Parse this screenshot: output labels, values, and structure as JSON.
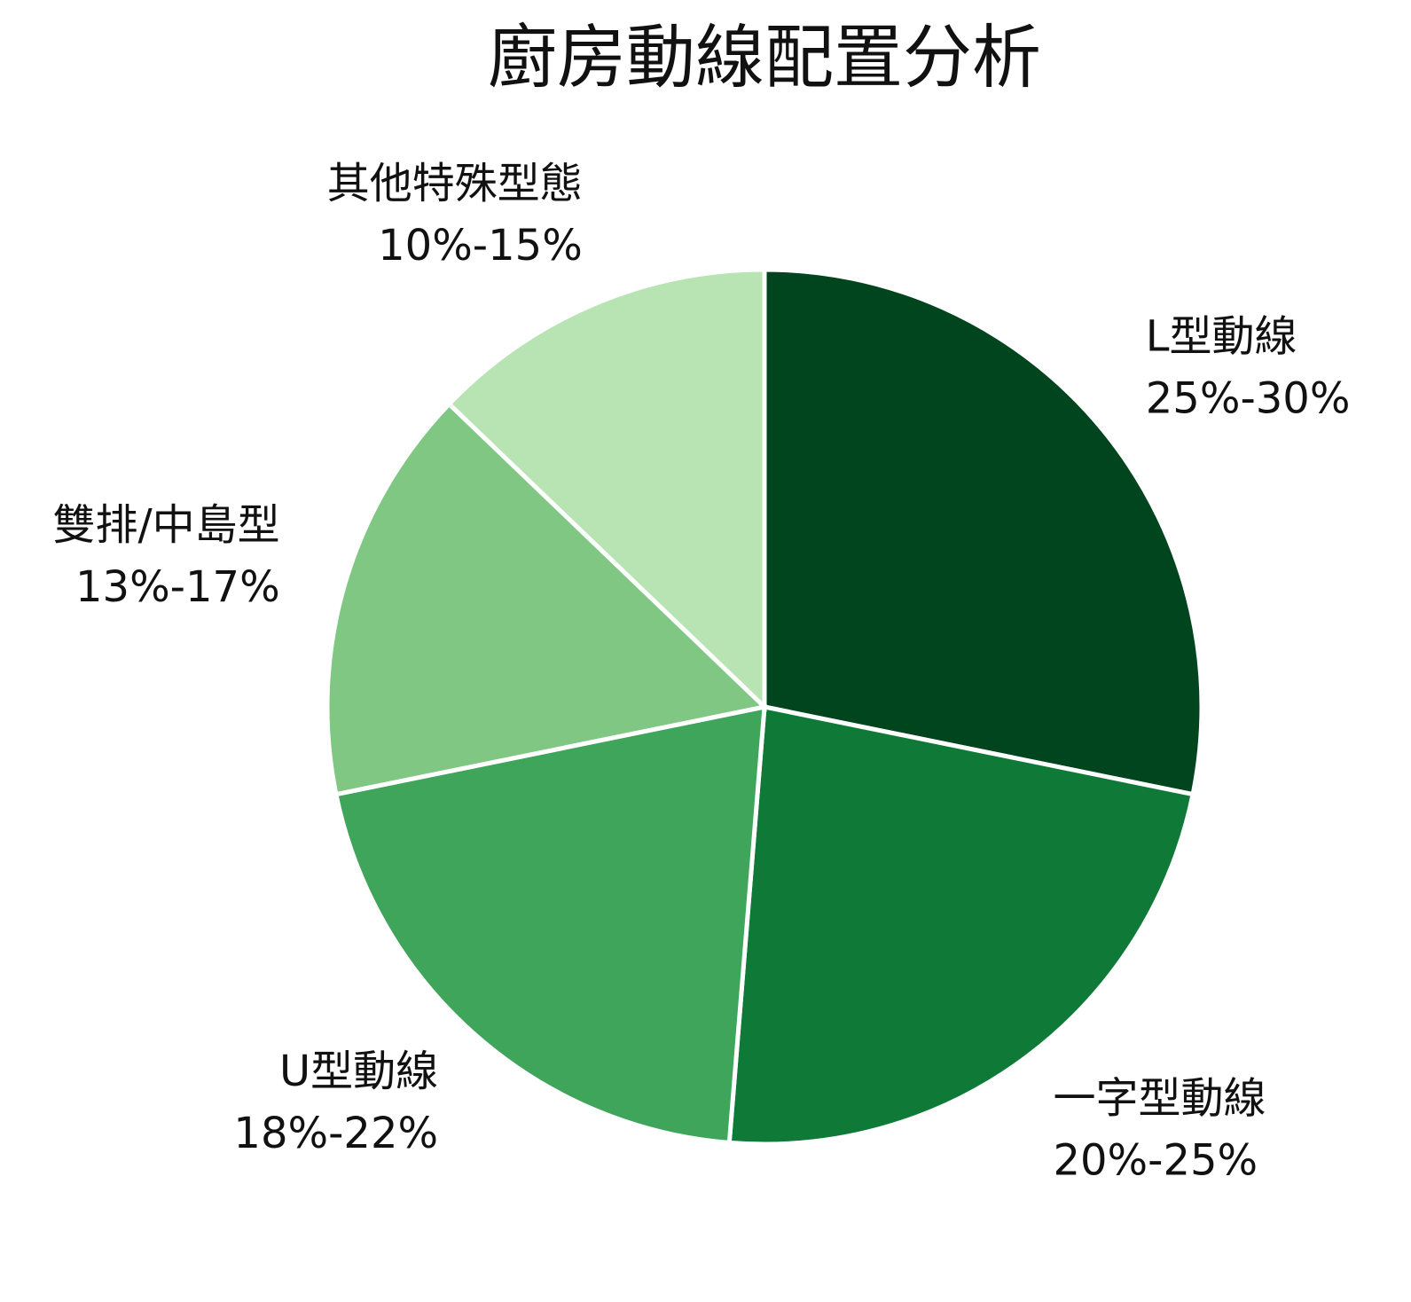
{
  "chart_data": {
    "type": "pie",
    "title": "廚房動線配置分析",
    "categories": [
      "L型動線",
      "一字型動線",
      "U型動線",
      "雙排/中島型",
      "其他特殊型態"
    ],
    "values": [
      27.5,
      22.5,
      20,
      15,
      12.5
    ],
    "value_labels": [
      "25%-30%",
      "20%-25%",
      "18%-22%",
      "13%-17%",
      "10%-15%"
    ],
    "colors": [
      "#00451d",
      "#0f7a37",
      "#3ea55b",
      "#80c783",
      "#b8e3b3"
    ]
  }
}
